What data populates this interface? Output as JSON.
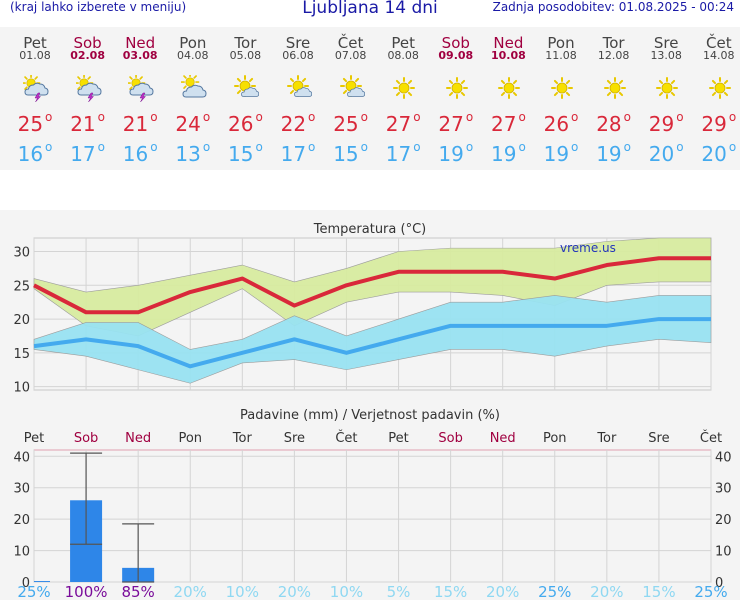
{
  "header": {
    "menu_hint": "(kraj lahko izberete v meniju)",
    "title": "Ljubljana 14 dni",
    "updated": "Zadnja posodobitev: 01.08.2025 - 00:24"
  },
  "colors": {
    "weekend": "#a00040",
    "tmax": "#d9283a",
    "tmin": "#44aaee",
    "precip_bar": "#2e86e8"
  },
  "days": [
    {
      "name": "Pet",
      "date": "01.08",
      "weekend": false,
      "icon": "sun-cloud-thunder-icon",
      "tmax": "25",
      "tmin": "16"
    },
    {
      "name": "Sob",
      "date": "02.08",
      "weekend": true,
      "icon": "sun-cloud-thunder-icon",
      "tmax": "21",
      "tmin": "17"
    },
    {
      "name": "Ned",
      "date": "03.08",
      "weekend": true,
      "icon": "sun-cloud-thunder-icon",
      "tmax": "21",
      "tmin": "16"
    },
    {
      "name": "Pon",
      "date": "04.08",
      "weekend": false,
      "icon": "sun-cloud-icon",
      "tmax": "24",
      "tmin": "13"
    },
    {
      "name": "Tor",
      "date": "05.08",
      "weekend": false,
      "icon": "sun-small-cloud-icon",
      "tmax": "26",
      "tmin": "15"
    },
    {
      "name": "Sre",
      "date": "06.08",
      "weekend": false,
      "icon": "sun-small-cloud-icon",
      "tmax": "22",
      "tmin": "17"
    },
    {
      "name": "Čet",
      "date": "07.08",
      "weekend": false,
      "icon": "sun-small-cloud-icon",
      "tmax": "25",
      "tmin": "15"
    },
    {
      "name": "Pet",
      "date": "08.08",
      "weekend": false,
      "icon": "sun-icon",
      "tmax": "27",
      "tmin": "17"
    },
    {
      "name": "Sob",
      "date": "09.08",
      "weekend": true,
      "icon": "sun-icon",
      "tmax": "27",
      "tmin": "19"
    },
    {
      "name": "Ned",
      "date": "10.08",
      "weekend": true,
      "icon": "sun-icon",
      "tmax": "27",
      "tmin": "19"
    },
    {
      "name": "Pon",
      "date": "11.08",
      "weekend": false,
      "icon": "sun-icon",
      "tmax": "26",
      "tmin": "19"
    },
    {
      "name": "Tor",
      "date": "12.08",
      "weekend": false,
      "icon": "sun-icon",
      "tmax": "28",
      "tmin": "19"
    },
    {
      "name": "Sre",
      "date": "13.08",
      "weekend": false,
      "icon": "sun-icon",
      "tmax": "29",
      "tmin": "20"
    },
    {
      "name": "Čet",
      "date": "14.08",
      "weekend": false,
      "icon": "sun-icon",
      "tmax": "29",
      "tmin": "20"
    }
  ],
  "watermark": "vreme.us",
  "chart_data": [
    {
      "type": "line",
      "title": "Temperatura (°C)",
      "x": [
        "Pet",
        "Sob",
        "Ned",
        "Pon",
        "Tor",
        "Sre",
        "Čet",
        "Pet",
        "Sob",
        "Ned",
        "Pon",
        "Tor",
        "Sre",
        "Čet"
      ],
      "ylim": [
        9.5,
        32
      ],
      "yticks": [
        10,
        15,
        20,
        25,
        30
      ],
      "grid": true,
      "series": [
        {
          "values": [
            25,
            21,
            21,
            24,
            26,
            22,
            25,
            27,
            27,
            27,
            26,
            28,
            29,
            29
          ],
          "color": "#d9283a"
        },
        {
          "values": [
            16,
            17,
            16,
            13,
            15,
            17,
            15,
            17,
            19,
            19,
            19,
            19,
            20,
            20
          ],
          "color": "#44aaee"
        }
      ],
      "bands": [
        {
          "upper": [
            26,
            24,
            25,
            26.5,
            28,
            25.5,
            27.5,
            30,
            30.5,
            30.5,
            30.5,
            31.5,
            33,
            33
          ],
          "lower": [
            24.5,
            19,
            17.5,
            21,
            24.5,
            19,
            22.5,
            24,
            24,
            23.5,
            22,
            25,
            25.5,
            25.5
          ],
          "color": "#d8eca0"
        },
        {
          "upper": [
            17,
            19.5,
            19.5,
            15.5,
            17,
            20.5,
            17.5,
            20,
            22.5,
            22.5,
            23.5,
            22.5,
            23.5,
            23.5
          ],
          "lower": [
            15.5,
            14.5,
            12.5,
            10.5,
            13.5,
            14,
            12.5,
            14,
            15.5,
            15.5,
            14.5,
            16,
            17,
            16.5
          ],
          "color": "#99e3f2"
        }
      ]
    },
    {
      "type": "bar",
      "title": "Padavine (mm) / Verjetnost padavin (%)",
      "categories": [
        "Pet",
        "Sob",
        "Ned",
        "Pon",
        "Tor",
        "Sre",
        "Čet",
        "Pet",
        "Sob",
        "Ned",
        "Pon",
        "Tor",
        "Sre",
        "Čet"
      ],
      "values": [
        0.3,
        26,
        4.5,
        0,
        0,
        0,
        0,
        0,
        0,
        0,
        0,
        0,
        0,
        0
      ],
      "error_ranges": [
        null,
        [
          12,
          41
        ],
        [
          0,
          18.5
        ],
        null,
        null,
        null,
        null,
        null,
        null,
        null,
        null,
        null,
        null,
        null
      ],
      "probability": [
        "25%",
        "100%",
        "85%",
        "20%",
        "10%",
        "20%",
        "10%",
        "5%",
        "15%",
        "20%",
        "25%",
        "20%",
        "15%",
        "25%"
      ],
      "ylim": [
        0,
        42
      ],
      "yticks": [
        0,
        10,
        20,
        30,
        40
      ],
      "grid": true
    }
  ]
}
